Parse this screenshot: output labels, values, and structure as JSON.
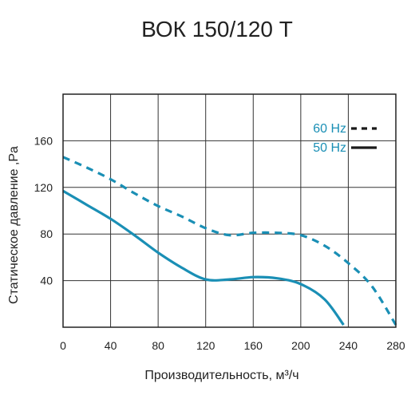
{
  "chart_data": {
    "type": "line",
    "title": "ВОК 150/120 Т",
    "xlabel": "Производительность, м³/ч",
    "ylabel": "Статическое давление ,Pa",
    "xlim": [
      0,
      280
    ],
    "ylim": [
      0,
      200
    ],
    "xticks": [
      0,
      40,
      80,
      120,
      160,
      200,
      240,
      280
    ],
    "yticks": [
      40,
      80,
      120,
      160
    ],
    "grid": true,
    "legend_position": "top-right",
    "series_color": "#1a8fb5",
    "legend_text_color": "#1a8fb5",
    "series": [
      {
        "name": "60 Hz",
        "style": "dashed",
        "x": [
          0,
          20,
          40,
          60,
          80,
          100,
          120,
          140,
          160,
          180,
          200,
          220,
          240,
          260,
          280
        ],
        "y": [
          146,
          137,
          127,
          115,
          104,
          95,
          85,
          79,
          81,
          81,
          79,
          70,
          55,
          35,
          2
        ]
      },
      {
        "name": "50 Hz",
        "style": "solid",
        "x": [
          0,
          20,
          40,
          60,
          80,
          100,
          120,
          140,
          160,
          180,
          200,
          220,
          236
        ],
        "y": [
          117,
          105,
          93,
          79,
          64,
          51,
          41,
          41,
          43,
          42,
          37,
          24,
          2
        ]
      }
    ]
  }
}
